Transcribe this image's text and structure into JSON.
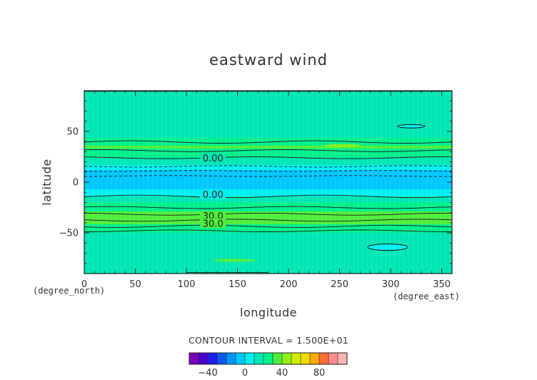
{
  "chart_data": {
    "type": "heatmap",
    "title": "eastward wind",
    "xlabel": "longitude",
    "ylabel": "latitude",
    "x_unit": "(degree_east)",
    "y_unit": "(degree_north)",
    "xlim": [
      0,
      360
    ],
    "ylim": [
      -90,
      90
    ],
    "x_ticks": [
      0,
      50,
      100,
      150,
      200,
      250,
      300,
      350
    ],
    "y_ticks": [
      -50,
      0,
      50
    ],
    "x_tick_labels": [
      "0",
      "50",
      "100",
      "150",
      "200",
      "250",
      "300",
      "350"
    ],
    "y_tick_labels": [
      "−50",
      "0",
      "50"
    ],
    "contour_interval_text": "CONTOUR INTERVAL = 1.500E+01",
    "contour_labels": [
      "0.00",
      "0.00",
      "30.0",
      "30.0"
    ],
    "zonal_profile": {
      "latitude": [
        -90,
        -80,
        -70,
        -60,
        -50,
        -45,
        -40,
        -35,
        -30,
        -25,
        -20,
        -15,
        -10,
        -5,
        0,
        5,
        10,
        15,
        20,
        25,
        30,
        35,
        40,
        45,
        50,
        55,
        60,
        70,
        80,
        90
      ],
      "wind": [
        15,
        18,
        18,
        17,
        20,
        26,
        32,
        33,
        31,
        26,
        20,
        12,
        3,
        -2,
        -5,
        -6,
        -3,
        6,
        15,
        21,
        28,
        31,
        26,
        17,
        13,
        11,
        12,
        15,
        15,
        15
      ]
    },
    "colorbar": {
      "levels": [
        -60,
        -50,
        -40,
        -30,
        -20,
        -10,
        0,
        10,
        20,
        30,
        40,
        50,
        60,
        70,
        80,
        90,
        100
      ],
      "colors": [
        "#7a00b8",
        "#4b00d0",
        "#1e1ee6",
        "#0a5af0",
        "#0096ff",
        "#00c8ff",
        "#00f0f0",
        "#00e6b4",
        "#00f08c",
        "#50ee3c",
        "#96ee14",
        "#d2ee00",
        "#f0dc00",
        "#ffa800",
        "#ff6e32",
        "#ff8c8c",
        "#ffb4b4"
      ],
      "tick_values": [
        -40,
        0,
        40,
        80
      ],
      "tick_labels": [
        "−40",
        "0",
        "40",
        "80"
      ]
    }
  }
}
